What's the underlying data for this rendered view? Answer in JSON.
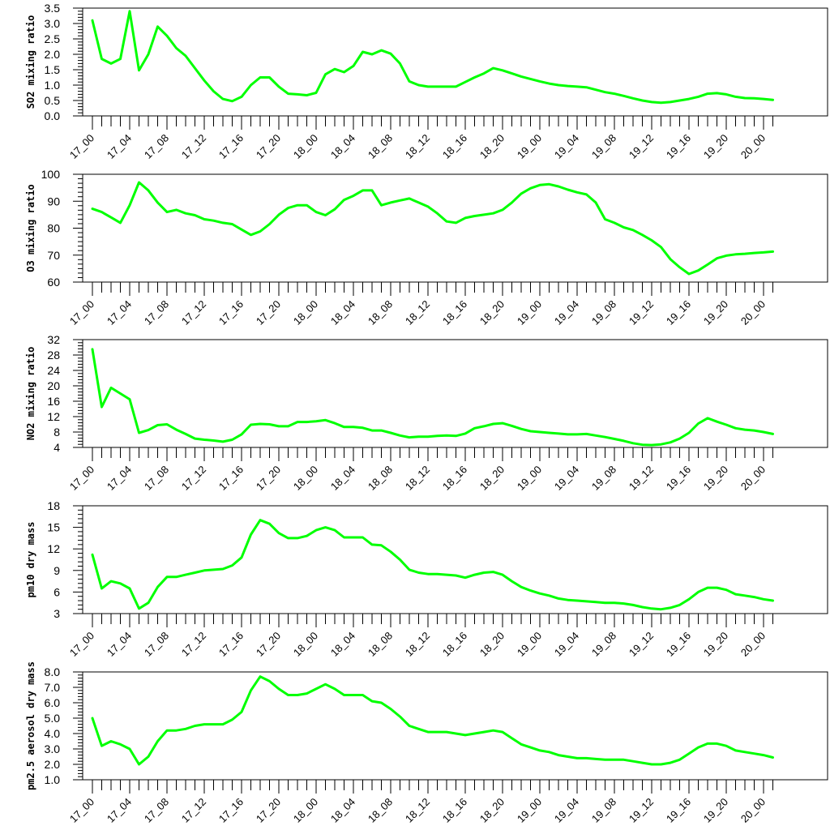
{
  "chart_data": [
    {
      "type": "line",
      "ylabel": "SO2 mixing ratio",
      "ylim": [
        0.0,
        3.5
      ],
      "yticks": [
        "0.0",
        "0.5",
        "1.0",
        "1.5",
        "2.0",
        "2.5",
        "3.0",
        "3.5"
      ],
      "y_minor_per_major": 4,
      "xtick_labels": [
        "17_00",
        "17_04",
        "17_08",
        "17_12",
        "17_16",
        "17_20",
        "18_00",
        "18_04",
        "18_08",
        "18_12",
        "18_16",
        "18_20",
        "19_00",
        "19_04",
        "19_08",
        "19_12",
        "19_16",
        "19_20",
        "20_00"
      ],
      "line_color": "#00ff00",
      "series": [
        {
          "values": [
            3.1,
            1.85,
            1.7,
            1.85,
            3.4,
            1.48,
            2.0,
            2.9,
            2.6,
            2.2,
            1.95,
            1.55,
            1.15,
            0.8,
            0.55,
            0.48,
            0.62,
            1.0,
            1.25,
            1.25,
            0.95,
            0.72,
            0.7,
            0.67,
            0.75,
            1.35,
            1.52,
            1.42,
            1.62,
            2.08,
            2.0,
            2.13,
            2.02,
            1.7,
            1.12,
            1.0,
            0.95,
            0.95,
            0.95,
            0.95,
            1.1,
            1.25,
            1.38,
            1.55,
            1.48,
            1.38,
            1.28,
            1.2,
            1.12,
            1.05,
            1.0,
            0.97,
            0.95,
            0.93,
            0.85,
            0.77,
            0.72,
            0.65,
            0.57,
            0.5,
            0.45,
            0.43,
            0.45,
            0.5,
            0.55,
            0.62,
            0.72,
            0.74,
            0.7,
            0.62,
            0.58,
            0.57,
            0.55,
            0.52
          ]
        }
      ]
    },
    {
      "type": "line",
      "ylabel": "O3 mixing ratio",
      "ylim": [
        60,
        100
      ],
      "yticks": [
        "60",
        "70",
        "80",
        "90",
        "100"
      ],
      "y_minor_per_major": 5,
      "xtick_labels": [
        "17_00",
        "17_04",
        "17_08",
        "17_12",
        "17_16",
        "17_20",
        "18_00",
        "18_04",
        "18_08",
        "18_12",
        "18_16",
        "18_20",
        "19_00",
        "19_04",
        "19_08",
        "19_12",
        "19_16",
        "19_20",
        "20_00"
      ],
      "line_color": "#00ff00",
      "series": [
        {
          "values": [
            87.2,
            86.0,
            84.0,
            82.0,
            88.5,
            97.0,
            94.0,
            89.5,
            86.0,
            86.8,
            85.5,
            84.8,
            83.3,
            82.8,
            82.0,
            81.5,
            79.5,
            77.5,
            78.8,
            81.5,
            85.0,
            87.5,
            88.5,
            88.5,
            86.0,
            84.8,
            87.0,
            90.5,
            92.0,
            94.0,
            94.0,
            88.5,
            89.5,
            90.3,
            91.0,
            89.5,
            88.0,
            85.5,
            82.5,
            82.0,
            83.8,
            84.5,
            85.0,
            85.5,
            86.8,
            89.5,
            92.8,
            94.8,
            96.0,
            96.3,
            95.5,
            94.3,
            93.3,
            92.5,
            89.5,
            83.3,
            82.0,
            80.3,
            79.3,
            77.5,
            75.5,
            73.0,
            68.5,
            65.5,
            63.0,
            64.3,
            66.5,
            68.8,
            69.8,
            70.3,
            70.5,
            70.8,
            71.0,
            71.3
          ]
        }
      ]
    },
    {
      "type": "line",
      "ylabel": "NO2 mixing ratio",
      "ylim": [
        4,
        32
      ],
      "yticks": [
        "4",
        "8",
        "12",
        "16",
        "20",
        "24",
        "28",
        "32"
      ],
      "y_minor_per_major": 4,
      "xtick_labels": [
        "17_00",
        "17_04",
        "17_08",
        "17_12",
        "17_16",
        "17_20",
        "18_00",
        "18_04",
        "18_08",
        "18_12",
        "18_16",
        "18_20",
        "19_00",
        "19_04",
        "19_08",
        "19_12",
        "19_16",
        "19_20",
        "20_00"
      ],
      "line_color": "#00ff00",
      "series": [
        {
          "values": [
            29.5,
            14.5,
            19.5,
            18.0,
            16.5,
            7.8,
            8.5,
            9.8,
            10.0,
            8.6,
            7.5,
            6.3,
            6.0,
            5.8,
            5.5,
            6.0,
            7.4,
            9.9,
            10.1,
            10.0,
            9.5,
            9.5,
            10.6,
            10.6,
            10.8,
            11.1,
            10.3,
            9.3,
            9.3,
            9.1,
            8.4,
            8.4,
            7.8,
            7.1,
            6.6,
            6.8,
            6.8,
            7.0,
            7.1,
            7.0,
            7.6,
            9.0,
            9.5,
            10.1,
            10.3,
            9.6,
            8.8,
            8.2,
            8.0,
            7.8,
            7.6,
            7.4,
            7.4,
            7.5,
            7.1,
            6.7,
            6.2,
            5.7,
            5.1,
            4.7,
            4.6,
            4.8,
            5.3,
            6.3,
            7.8,
            10.2,
            11.6,
            10.7,
            9.9,
            9.0,
            8.6,
            8.4,
            8.0,
            7.5
          ]
        }
      ]
    },
    {
      "type": "line",
      "ylabel": "pm10 dry mass",
      "ylim": [
        3,
        18
      ],
      "yticks": [
        "3",
        "6",
        "9",
        "12",
        "15",
        "18"
      ],
      "y_minor_per_major": 4,
      "xtick_labels": [
        "17_00",
        "17_04",
        "17_08",
        "17_12",
        "17_16",
        "17_20",
        "18_00",
        "18_04",
        "18_08",
        "18_12",
        "18_16",
        "18_20",
        "19_00",
        "19_04",
        "19_08",
        "19_12",
        "19_16",
        "19_20",
        "20_00"
      ],
      "line_color": "#00ff00",
      "series": [
        {
          "values": [
            11.2,
            6.5,
            7.5,
            7.2,
            6.5,
            3.7,
            4.5,
            6.7,
            8.1,
            8.1,
            8.4,
            8.7,
            9.0,
            9.1,
            9.2,
            9.7,
            10.8,
            14.0,
            16.0,
            15.5,
            14.2,
            13.5,
            13.5,
            13.8,
            14.6,
            15.0,
            14.6,
            13.6,
            13.6,
            13.6,
            12.6,
            12.5,
            11.6,
            10.5,
            9.1,
            8.7,
            8.5,
            8.5,
            8.4,
            8.3,
            8.0,
            8.4,
            8.7,
            8.8,
            8.4,
            7.5,
            6.7,
            6.2,
            5.8,
            5.5,
            5.1,
            4.9,
            4.8,
            4.7,
            4.6,
            4.5,
            4.5,
            4.4,
            4.2,
            3.9,
            3.7,
            3.6,
            3.8,
            4.2,
            5.0,
            6.0,
            6.6,
            6.6,
            6.3,
            5.7,
            5.5,
            5.3,
            5.0,
            4.8
          ]
        }
      ]
    },
    {
      "type": "line",
      "ylabel": "pm2.5 aerosol dry mass",
      "ylim": [
        1.0,
        8.0
      ],
      "yticks": [
        "1.0",
        "2.0",
        "3.0",
        "4.0",
        "5.0",
        "6.0",
        "7.0",
        "8.0"
      ],
      "y_minor_per_major": 4,
      "xtick_labels": [
        "17_00",
        "17_04",
        "17_08",
        "17_12",
        "17_16",
        "17_20",
        "18_00",
        "18_04",
        "18_08",
        "18_12",
        "18_16",
        "18_20",
        "19_00",
        "19_04",
        "19_08",
        "19_12",
        "19_16",
        "19_20",
        "20_00"
      ],
      "line_color": "#00ff00",
      "series": [
        {
          "values": [
            5.0,
            3.2,
            3.5,
            3.3,
            3.0,
            2.0,
            2.5,
            3.5,
            4.2,
            4.2,
            4.3,
            4.5,
            4.6,
            4.6,
            4.6,
            4.9,
            5.4,
            6.8,
            7.7,
            7.4,
            6.9,
            6.5,
            6.5,
            6.6,
            6.9,
            7.2,
            6.9,
            6.5,
            6.5,
            6.5,
            6.1,
            6.0,
            5.6,
            5.1,
            4.5,
            4.3,
            4.1,
            4.1,
            4.1,
            4.0,
            3.9,
            4.0,
            4.1,
            4.2,
            4.1,
            3.7,
            3.3,
            3.1,
            2.9,
            2.8,
            2.6,
            2.5,
            2.4,
            2.4,
            2.35,
            2.3,
            2.3,
            2.3,
            2.2,
            2.1,
            2.0,
            2.0,
            2.1,
            2.3,
            2.7,
            3.1,
            3.35,
            3.35,
            3.2,
            2.9,
            2.8,
            2.7,
            2.6,
            2.45
          ]
        }
      ]
    }
  ]
}
